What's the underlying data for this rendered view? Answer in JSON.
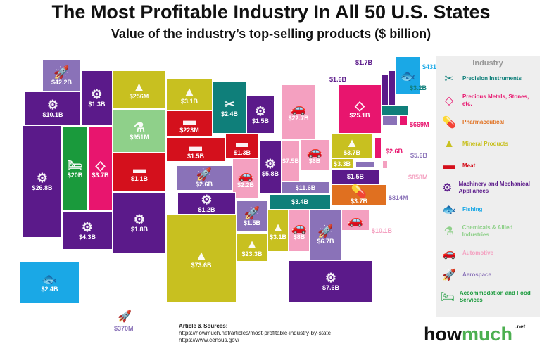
{
  "title": "The Most Profitable Industry In All 50 U.S. States",
  "subtitle": "Value of the industry’s top-selling products ($ billion)",
  "legend": {
    "heading": "Industry",
    "items": [
      {
        "key": "precision",
        "label": "Precision Instruments",
        "color": "#0f7f7a",
        "icon": "surgical-tools-icon"
      },
      {
        "key": "precious",
        "label": "Precious Metals, Stones, etc.",
        "color": "#e8156e",
        "icon": "diamond-icon"
      },
      {
        "key": "pharma",
        "label": "Pharmaceutical",
        "color": "#e07020",
        "icon": "pill-icon"
      },
      {
        "key": "mineral",
        "label": "Mineral Products",
        "color": "#c8c020",
        "icon": "mineral-pile-icon"
      },
      {
        "key": "meat",
        "label": "Meat",
        "color": "#d4101c",
        "icon": "steak-icon"
      },
      {
        "key": "machinery",
        "label": "Machinery and Mechanical Appliances",
        "color": "#5b1a8a",
        "icon": "gear-icon"
      },
      {
        "key": "fishing",
        "label": "Fishing",
        "color": "#1aa8e6",
        "icon": "fish-icon"
      },
      {
        "key": "chemicals",
        "label": "Chemicals & Allied Industries",
        "color": "#8fd08a",
        "icon": "flask-icon"
      },
      {
        "key": "automotive",
        "label": "Automotive",
        "color": "#f4a0c0",
        "icon": "car-icon"
      },
      {
        "key": "aerospace",
        "label": "Aerospace",
        "color": "#8a72b8",
        "icon": "rocket-icon"
      },
      {
        "key": "accommodation",
        "label": "Accommodation and Food Services",
        "color": "#1a9a3c",
        "icon": "bed-icon"
      }
    ]
  },
  "states": [
    {
      "id": "WA",
      "value": "$42.2B",
      "industry": "aerospace"
    },
    {
      "id": "OR",
      "value": "$10.1B",
      "industry": "machinery"
    },
    {
      "id": "ID",
      "value": "$1.3B",
      "industry": "machinery"
    },
    {
      "id": "MT",
      "value": "$256M",
      "industry": "mineral"
    },
    {
      "id": "WY",
      "value": "$951M",
      "industry": "chemicals"
    },
    {
      "id": "ND",
      "value": "$3.1B",
      "industry": "mineral"
    },
    {
      "id": "SD",
      "value": "$223M",
      "industry": "meat"
    },
    {
      "id": "NE",
      "value": "$1.5B",
      "industry": "meat"
    },
    {
      "id": "MN",
      "value": "$2.4B",
      "industry": "precision"
    },
    {
      "id": "IA",
      "value": "$1.3B",
      "industry": "meat"
    },
    {
      "id": "WI",
      "value": "$1.5B",
      "industry": "machinery"
    },
    {
      "id": "IL",
      "value": "$5.8B",
      "industry": "machinery"
    },
    {
      "id": "MI",
      "value": "$22.7B",
      "industry": "automotive"
    },
    {
      "id": "IN",
      "value": "$7.5B",
      "industry": "automotive"
    },
    {
      "id": "OH",
      "value": "$6B",
      "industry": "automotive"
    },
    {
      "id": "KY",
      "value": "$11.6B",
      "industry": "aerospace"
    },
    {
      "id": "TN",
      "value": "$3.4B",
      "industry": "precision"
    },
    {
      "id": "NV",
      "value": "$20B",
      "industry": "accommodation"
    },
    {
      "id": "CA",
      "value": "$26.8B",
      "industry": "machinery"
    },
    {
      "id": "UT",
      "value": "$3.7B",
      "industry": "precious"
    },
    {
      "id": "CO",
      "value": "$1.1B",
      "industry": "meat"
    },
    {
      "id": "KS",
      "value": "$2.6B",
      "industry": "aerospace"
    },
    {
      "id": "MO",
      "value": "$2.2B",
      "industry": "automotive"
    },
    {
      "id": "AZ",
      "value": "$4.3B",
      "industry": "machinery"
    },
    {
      "id": "NM",
      "value": "$1.8B",
      "industry": "machinery"
    },
    {
      "id": "OK",
      "value": "$1.2B",
      "industry": "machinery"
    },
    {
      "id": "TX",
      "value": "$73.6B",
      "industry": "mineral"
    },
    {
      "id": "AR",
      "value": "$1.5B",
      "industry": "aerospace"
    },
    {
      "id": "LA",
      "value": "$23.3B",
      "industry": "mineral"
    },
    {
      "id": "MS",
      "value": "$3.1B",
      "industry": "mineral"
    },
    {
      "id": "AL",
      "value": "$8B",
      "industry": "automotive"
    },
    {
      "id": "GA",
      "value": "$6.7B",
      "industry": "aerospace"
    },
    {
      "id": "FL",
      "value": "$7.6B",
      "industry": "machinery"
    },
    {
      "id": "SC",
      "value": "$10.1B",
      "industry": "automotive"
    },
    {
      "id": "NC",
      "value": "$3.7B",
      "industry": "pharma"
    },
    {
      "id": "VA",
      "value": "$1.5B",
      "industry": "machinery"
    },
    {
      "id": "WV",
      "value": "$3.3B",
      "industry": "mineral"
    },
    {
      "id": "PA",
      "value": "$3.7B",
      "industry": "mineral"
    },
    {
      "id": "NY",
      "value": "$25.1B",
      "industry": "precious"
    },
    {
      "id": "NJ",
      "value": "$2.6B",
      "industry": "precious"
    },
    {
      "id": "VT",
      "value": "$1.6B",
      "industry": "machinery"
    },
    {
      "id": "NH",
      "value": "$1.7B",
      "industry": "machinery"
    },
    {
      "id": "ME",
      "value": "$431M",
      "industry": "fishing"
    },
    {
      "id": "MA",
      "value": "$3.2B",
      "industry": "precision"
    },
    {
      "id": "RI",
      "value": "$669M",
      "industry": "precious"
    },
    {
      "id": "CT",
      "value": "$5.6B",
      "industry": "aerospace"
    },
    {
      "id": "DE",
      "value": "$858M",
      "industry": "automotive"
    },
    {
      "id": "MD",
      "value": "$814M",
      "industry": "aerospace"
    },
    {
      "id": "AK",
      "value": "$2.4B",
      "industry": "fishing"
    },
    {
      "id": "HI",
      "value": "$370M",
      "industry": "aerospace"
    }
  ],
  "sources": {
    "heading": "Article & Sources:",
    "lines": [
      "https://howmuch.net/articles/most-profitable-industry-by-state",
      "https://www.census.gov/"
    ]
  },
  "logo": {
    "part1": "how",
    "part2": "much",
    "suffix": ".net"
  }
}
